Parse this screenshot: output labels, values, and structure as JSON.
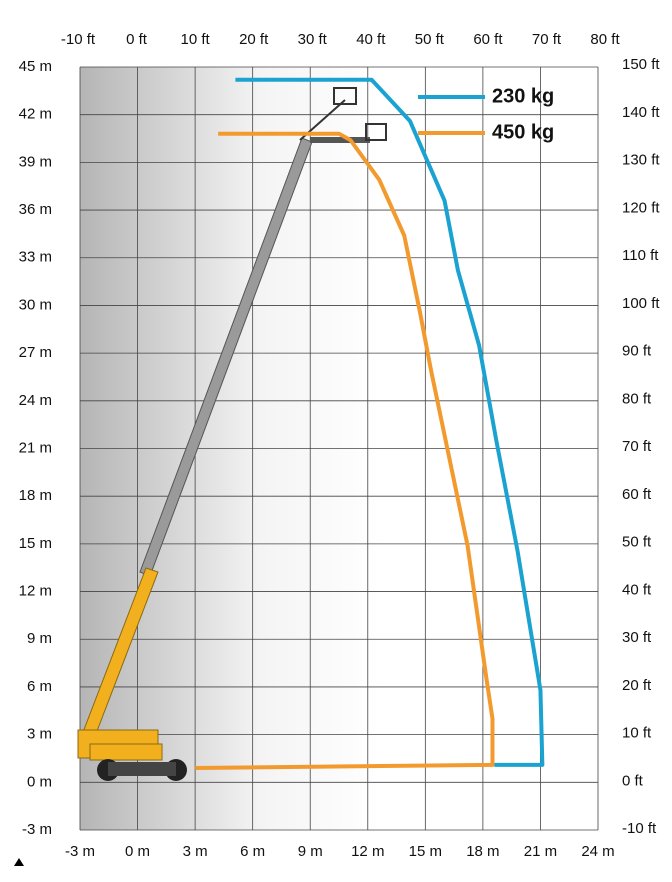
{
  "chart_data": {
    "type": "line",
    "xlim": [
      -3,
      24
    ],
    "xticks": [
      {
        "value": -3,
        "label": "-3 m"
      },
      {
        "value": 0,
        "label": "0 m"
      },
      {
        "value": 3,
        "label": "3 m"
      },
      {
        "value": 6,
        "label": "6 m"
      },
      {
        "value": 9,
        "label": "9 m"
      },
      {
        "value": 12,
        "label": "12 m"
      },
      {
        "value": 15,
        "label": "15 m"
      },
      {
        "value": 18,
        "label": "18 m"
      },
      {
        "value": 21,
        "label": "21 m"
      },
      {
        "value": 24,
        "label": "24 m"
      }
    ],
    "ylim": [
      -3,
      45
    ],
    "yticks": [
      {
        "value": -3,
        "label": "-3 m"
      },
      {
        "value": 0,
        "label": "0 m"
      },
      {
        "value": 3,
        "label": "3 m"
      },
      {
        "value": 6,
        "label": "6 m"
      },
      {
        "value": 9,
        "label": "9 m"
      },
      {
        "value": 12,
        "label": "12 m"
      },
      {
        "value": 15,
        "label": "15 m"
      },
      {
        "value": 18,
        "label": "18 m"
      },
      {
        "value": 21,
        "label": "21 m"
      },
      {
        "value": 24,
        "label": "24 m"
      },
      {
        "value": 27,
        "label": "27 m"
      },
      {
        "value": 30,
        "label": "30 m"
      },
      {
        "value": 33,
        "label": "33 m"
      },
      {
        "value": 36,
        "label": "36 m"
      },
      {
        "value": 39,
        "label": "39 m"
      },
      {
        "value": 42,
        "label": "42 m"
      },
      {
        "value": 45,
        "label": "45 m"
      }
    ],
    "x2lim": [
      -9.66,
      78.8
    ],
    "x2ticks": [
      {
        "value": -10,
        "label": "-10 ft"
      },
      {
        "value": 0,
        "label": "0 ft"
      },
      {
        "value": 10,
        "label": "10 ft"
      },
      {
        "value": 20,
        "label": "20 ft"
      },
      {
        "value": 30,
        "label": "30 ft"
      },
      {
        "value": 40,
        "label": "40 ft"
      },
      {
        "value": 50,
        "label": "50 ft"
      },
      {
        "value": 60,
        "label": "60 ft"
      },
      {
        "value": 70,
        "label": "70 ft"
      },
      {
        "value": 80,
        "label": "80 ft"
      }
    ],
    "y2lim": [
      -10.2,
      149.6
    ],
    "y2ticks": [
      {
        "value": -10,
        "label": "-10 ft"
      },
      {
        "value": 0,
        "label": "0 ft"
      },
      {
        "value": 10,
        "label": "10 ft"
      },
      {
        "value": 20,
        "label": "20 ft"
      },
      {
        "value": 30,
        "label": "30 ft"
      },
      {
        "value": 40,
        "label": "40 ft"
      },
      {
        "value": 50,
        "label": "50 ft"
      },
      {
        "value": 60,
        "label": "60 ft"
      },
      {
        "value": 70,
        "label": "70 ft"
      },
      {
        "value": 80,
        "label": "80 ft"
      },
      {
        "value": 90,
        "label": "90 ft"
      },
      {
        "value": 100,
        "label": "100 ft"
      },
      {
        "value": 110,
        "label": "110 ft"
      },
      {
        "value": 120,
        "label": "120 ft"
      },
      {
        "value": 130,
        "label": "130 ft"
      },
      {
        "value": 140,
        "label": "140 ft"
      },
      {
        "value": 150,
        "label": "150 ft"
      }
    ],
    "grid": true,
    "legend": "top-right",
    "series": [
      {
        "name": "230 kg",
        "color": "#1aa3d1",
        "x": [
          5.1,
          12.2,
          14.2,
          16.0,
          16.7,
          17.8,
          18.7,
          19.8,
          21.0,
          21.1,
          18.6
        ],
        "values": [
          44.2,
          44.2,
          41.6,
          36.6,
          32.2,
          27.5,
          21.5,
          14.6,
          5.8,
          1.1,
          1.1
        ]
      },
      {
        "name": "450 kg",
        "color": "#f39a2e",
        "x": [
          4.2,
          10.5,
          11.1,
          12.6,
          13.9,
          14.7,
          15.3,
          17.2,
          18.2,
          18.5,
          18.5,
          3.0
        ],
        "values": [
          40.8,
          40.8,
          40.4,
          37.9,
          34.4,
          29.7,
          25.9,
          14.9,
          6.4,
          4.0,
          1.1,
          0.9
        ]
      }
    ]
  }
}
